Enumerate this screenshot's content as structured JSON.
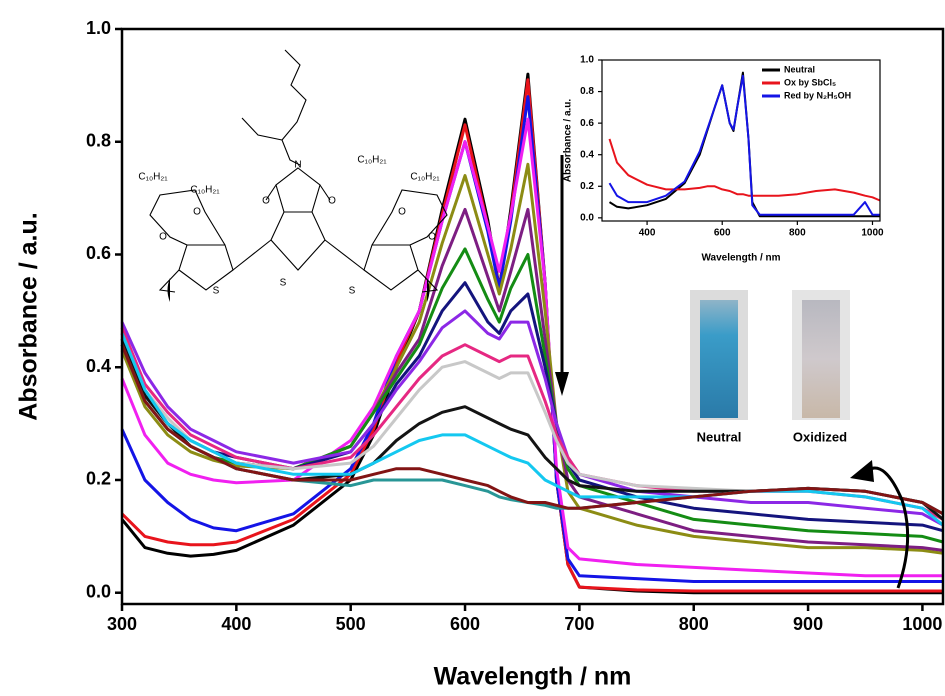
{
  "chart_data": [
    {
      "type": "line",
      "xlabel": "Wavelength / nm",
      "ylabel": "Absorbance / a.u.",
      "xlim": [
        300,
        1018
      ],
      "ylim": [
        -0.02,
        1.0
      ],
      "xticks": [
        300,
        400,
        500,
        600,
        700,
        800,
        900,
        1000
      ],
      "yticks": [
        {
          "value": 0,
          "label": "0.0"
        },
        0.2,
        0.4,
        0.6,
        0.8,
        {
          "value": 1,
          "label": "1.0"
        }
      ],
      "x": [
        300,
        320,
        340,
        360,
        380,
        400,
        450,
        500,
        520,
        540,
        560,
        580,
        600,
        620,
        630,
        640,
        655,
        670,
        680,
        690,
        700,
        750,
        800,
        850,
        900,
        950,
        1000,
        1018
      ],
      "series": [
        {
          "color": "#000000",
          "values": [
            0.13,
            0.08,
            0.07,
            0.065,
            0.068,
            0.075,
            0.12,
            0.2,
            0.28,
            0.4,
            0.5,
            0.68,
            0.84,
            0.66,
            0.54,
            0.68,
            0.92,
            0.55,
            0.2,
            0.05,
            0.01,
            0.003,
            0,
            0,
            0,
            0,
            0,
            0
          ]
        },
        {
          "color": "#e8141c",
          "values": [
            0.14,
            0.1,
            0.09,
            0.085,
            0.085,
            0.09,
            0.13,
            0.21,
            0.29,
            0.41,
            0.5,
            0.67,
            0.83,
            0.65,
            0.54,
            0.67,
            0.91,
            0.55,
            0.2,
            0.05,
            0.01,
            0.005,
            0.003,
            0.003,
            0.003,
            0.003,
            0.003,
            0.003
          ]
        },
        {
          "color": "#1414e6",
          "values": [
            0.29,
            0.2,
            0.16,
            0.13,
            0.115,
            0.11,
            0.14,
            0.22,
            0.3,
            0.42,
            0.5,
            0.66,
            0.8,
            0.64,
            0.54,
            0.66,
            0.88,
            0.55,
            0.2,
            0.06,
            0.03,
            0.025,
            0.02,
            0.02,
            0.02,
            0.02,
            0.02,
            0.02
          ]
        },
        {
          "color": "#f020f0",
          "values": [
            0.38,
            0.28,
            0.23,
            0.21,
            0.2,
            0.195,
            0.2,
            0.27,
            0.33,
            0.42,
            0.5,
            0.66,
            0.8,
            0.65,
            0.57,
            0.67,
            0.84,
            0.55,
            0.22,
            0.08,
            0.06,
            0.05,
            0.045,
            0.04,
            0.035,
            0.03,
            0.03,
            0.03
          ]
        },
        {
          "color": "#8c8c14",
          "values": [
            0.43,
            0.33,
            0.28,
            0.25,
            0.235,
            0.225,
            0.22,
            0.26,
            0.32,
            0.4,
            0.48,
            0.62,
            0.74,
            0.6,
            0.53,
            0.61,
            0.76,
            0.5,
            0.3,
            0.18,
            0.15,
            0.12,
            0.1,
            0.09,
            0.08,
            0.08,
            0.075,
            0.07
          ]
        },
        {
          "color": "#7d1e82",
          "values": [
            0.44,
            0.34,
            0.29,
            0.26,
            0.24,
            0.23,
            0.22,
            0.26,
            0.32,
            0.39,
            0.45,
            0.58,
            0.68,
            0.56,
            0.5,
            0.57,
            0.68,
            0.45,
            0.3,
            0.2,
            0.17,
            0.14,
            0.11,
            0.1,
            0.09,
            0.085,
            0.08,
            0.075
          ]
        },
        {
          "color": "#148c14",
          "values": [
            0.45,
            0.34,
            0.29,
            0.26,
            0.24,
            0.23,
            0.22,
            0.26,
            0.32,
            0.38,
            0.44,
            0.54,
            0.61,
            0.52,
            0.48,
            0.54,
            0.6,
            0.42,
            0.3,
            0.22,
            0.19,
            0.16,
            0.13,
            0.12,
            0.11,
            0.105,
            0.1,
            0.09
          ]
        },
        {
          "color": "#14147d",
          "values": [
            0.46,
            0.35,
            0.3,
            0.27,
            0.25,
            0.24,
            0.22,
            0.25,
            0.3,
            0.37,
            0.42,
            0.5,
            0.55,
            0.48,
            0.46,
            0.5,
            0.53,
            0.4,
            0.3,
            0.23,
            0.2,
            0.17,
            0.15,
            0.14,
            0.13,
            0.125,
            0.12,
            0.11
          ]
        },
        {
          "color": "#8c28e6",
          "values": [
            0.48,
            0.39,
            0.33,
            0.29,
            0.27,
            0.25,
            0.23,
            0.25,
            0.3,
            0.36,
            0.41,
            0.47,
            0.5,
            0.46,
            0.45,
            0.48,
            0.48,
            0.38,
            0.3,
            0.24,
            0.21,
            0.18,
            0.17,
            0.16,
            0.16,
            0.15,
            0.14,
            0.12
          ]
        },
        {
          "color": "#e62882",
          "values": [
            0.47,
            0.37,
            0.32,
            0.28,
            0.26,
            0.24,
            0.22,
            0.24,
            0.28,
            0.33,
            0.38,
            0.42,
            0.44,
            0.42,
            0.41,
            0.42,
            0.42,
            0.34,
            0.28,
            0.24,
            0.21,
            0.19,
            0.18,
            0.18,
            0.18,
            0.17,
            0.15,
            0.13
          ]
        },
        {
          "color": "#c8c8c8",
          "values": [
            0.46,
            0.36,
            0.31,
            0.27,
            0.25,
            0.23,
            0.22,
            0.23,
            0.26,
            0.31,
            0.36,
            0.4,
            0.41,
            0.39,
            0.38,
            0.39,
            0.39,
            0.32,
            0.27,
            0.23,
            0.21,
            0.19,
            0.185,
            0.18,
            0.185,
            0.18,
            0.16,
            0.13
          ]
        },
        {
          "color": "#141414",
          "values": [
            0.45,
            0.35,
            0.3,
            0.26,
            0.24,
            0.22,
            0.2,
            0.21,
            0.23,
            0.27,
            0.3,
            0.32,
            0.33,
            0.31,
            0.3,
            0.29,
            0.28,
            0.24,
            0.22,
            0.2,
            0.19,
            0.18,
            0.18,
            0.18,
            0.185,
            0.18,
            0.16,
            0.13
          ]
        },
        {
          "color": "#289696",
          "values": [
            0.44,
            0.34,
            0.29,
            0.26,
            0.24,
            0.22,
            0.2,
            0.19,
            0.2,
            0.2,
            0.2,
            0.2,
            0.19,
            0.18,
            0.17,
            0.165,
            0.16,
            0.155,
            0.15,
            0.15,
            0.15,
            0.16,
            0.17,
            0.18,
            0.185,
            0.18,
            0.16,
            0.14
          ]
        },
        {
          "color": "#14c8f0",
          "values": [
            0.46,
            0.36,
            0.3,
            0.27,
            0.25,
            0.23,
            0.21,
            0.21,
            0.23,
            0.25,
            0.27,
            0.28,
            0.28,
            0.26,
            0.25,
            0.24,
            0.23,
            0.2,
            0.19,
            0.18,
            0.17,
            0.17,
            0.17,
            0.18,
            0.18,
            0.17,
            0.15,
            0.12
          ]
        },
        {
          "color": "#821414",
          "values": [
            0.44,
            0.34,
            0.29,
            0.26,
            0.24,
            0.22,
            0.2,
            0.2,
            0.21,
            0.22,
            0.22,
            0.21,
            0.2,
            0.19,
            0.18,
            0.17,
            0.16,
            0.16,
            0.155,
            0.15,
            0.15,
            0.16,
            0.17,
            0.18,
            0.185,
            0.18,
            0.16,
            0.14
          ]
        }
      ],
      "annotations": [
        "Neutral",
        "Oxidized"
      ],
      "structure_labels": [
        "C₁₀H₂₁",
        "C₁₀H₂₁",
        "C₁₀H₂₁",
        "C₁₀H₂₁",
        "O",
        "O",
        "O",
        "O",
        "O",
        "O",
        "N",
        "S",
        "S",
        "S"
      ]
    },
    {
      "type": "line",
      "xlabel": "Wavelength / nm",
      "ylabel": "Absorbance / a.u.",
      "xlim": [
        280,
        1020
      ],
      "ylim": [
        -0.02,
        1.0
      ],
      "xticks": [
        400,
        600,
        800,
        1000
      ],
      "yticks": [
        {
          "value": 0,
          "label": "0.0"
        },
        0.2,
        0.4,
        0.6,
        0.8,
        {
          "value": 1,
          "label": "1.0"
        }
      ],
      "legend": "upper right",
      "x": [
        300,
        320,
        350,
        400,
        450,
        500,
        540,
        560,
        580,
        600,
        620,
        630,
        640,
        655,
        670,
        680,
        700,
        750,
        800,
        850,
        900,
        950,
        980,
        1000,
        1020
      ],
      "series": [
        {
          "name": "Neutral",
          "color": "#000000",
          "values": [
            0.1,
            0.07,
            0.06,
            0.08,
            0.12,
            0.22,
            0.4,
            0.55,
            0.7,
            0.84,
            0.6,
            0.55,
            0.7,
            0.92,
            0.5,
            0.1,
            0.01,
            0.01,
            0.01,
            0.01,
            0.01,
            0.01,
            0.01,
            0.01,
            0.01
          ]
        },
        {
          "name": "Ox by SbCl₅",
          "color": "#e8141c",
          "values": [
            0.5,
            0.35,
            0.27,
            0.21,
            0.18,
            0.18,
            0.19,
            0.2,
            0.2,
            0.18,
            0.17,
            0.16,
            0.15,
            0.15,
            0.14,
            0.14,
            0.14,
            0.14,
            0.15,
            0.17,
            0.18,
            0.16,
            0.14,
            0.13,
            0.11
          ]
        },
        {
          "name": "Red by N₂H₅OH",
          "color": "#1414e6",
          "values": [
            0.22,
            0.14,
            0.1,
            0.1,
            0.14,
            0.23,
            0.42,
            0.56,
            0.7,
            0.84,
            0.6,
            0.56,
            0.7,
            0.9,
            0.5,
            0.08,
            0.02,
            0.02,
            0.02,
            0.02,
            0.02,
            0.02,
            0.1,
            0.02,
            0.02
          ]
        }
      ]
    }
  ]
}
